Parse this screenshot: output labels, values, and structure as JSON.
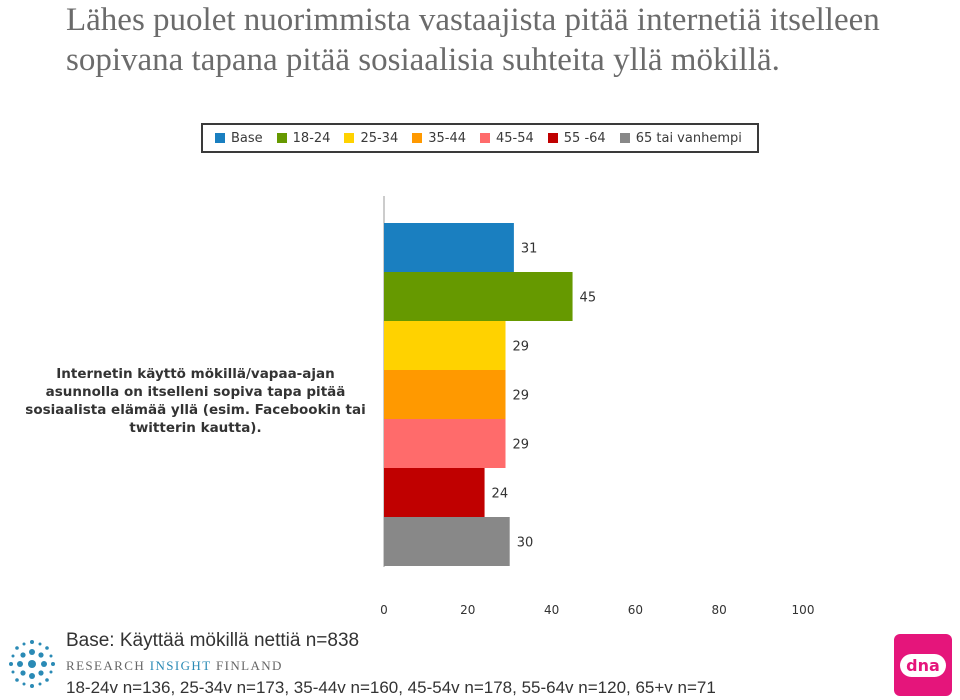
{
  "title": "Lähes puolet nuorimmista vastaajista pitää internetiä itselleen sopivana tapana pitää sosiaalisia suhteita yllä mökillä.",
  "chart_data": {
    "type": "bar",
    "orientation": "horizontal",
    "categories": [
      "Internetin käyttö mökillä/vapaa-ajan asunnolla on itselleni sopiva tapa pitää sosiaalista elämää yllä (esim. Facebookin tai twitterin kautta)."
    ],
    "series": [
      {
        "name": "Base",
        "values": [
          31
        ],
        "color": "#1a7fc0"
      },
      {
        "name": "18-24",
        "values": [
          45
        ],
        "color": "#669900"
      },
      {
        "name": "25-34",
        "values": [
          29
        ],
        "color": "#ffd200"
      },
      {
        "name": "35-44",
        "values": [
          29
        ],
        "color": "#ff9900"
      },
      {
        "name": "45-54",
        "values": [
          29
        ],
        "color": "#ff6b6b"
      },
      {
        "name": "55 -64",
        "values": [
          24
        ],
        "color": "#c00000"
      },
      {
        "name": "65 tai vanhempi",
        "values": [
          30
        ],
        "color": "#888888"
      }
    ],
    "xlim": [
      0,
      100
    ],
    "xticks": [
      "0",
      "20",
      "40",
      "60",
      "80",
      "100"
    ],
    "grid": false,
    "legend_position": "top"
  },
  "footer": {
    "base": "Base: Käyttää mökillä nettiä n=838",
    "sample_sizes": "18-24v n=136, 25-34v n=173, 35-44v n=160, 45-54v n=178, 55-64v n=120, 65+v n=71"
  },
  "logos": {
    "rif_part1": "RESEARCH",
    "rif_part2": "INSIGHT",
    "rif_part3": "FINLAND",
    "dna": "dna"
  }
}
